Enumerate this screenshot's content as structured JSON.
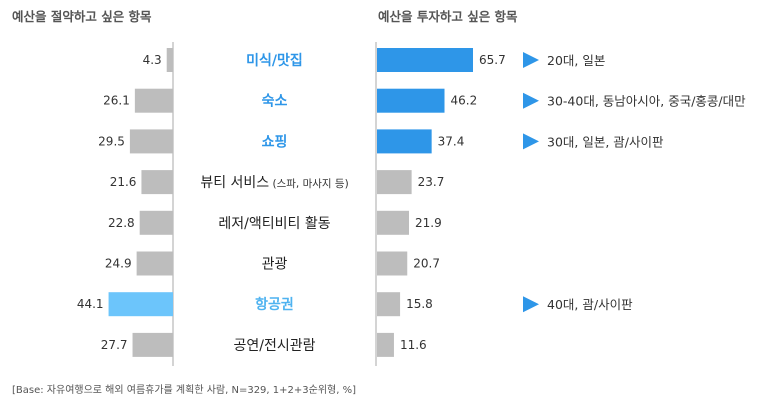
{
  "chart_data": {
    "type": "bar",
    "layout": "diverging-horizontal",
    "titles": {
      "left": "예산을 절약하고 싶은 항목",
      "right": "예산을 투자하고 싶은 항목"
    },
    "categories": [
      {
        "label": "미식/맛집",
        "note": "",
        "style": "highlight"
      },
      {
        "label": "숙소",
        "note": "",
        "style": "highlight"
      },
      {
        "label": "쇼핑",
        "note": "",
        "style": "highlight"
      },
      {
        "label": "뷰티 서비스",
        "note": "(스파, 마사지 등)",
        "style": "normal"
      },
      {
        "label": "레저/액티비티 활동",
        "note": "",
        "style": "normal"
      },
      {
        "label": "관광",
        "note": "",
        "style": "normal"
      },
      {
        "label": "항공권",
        "note": "",
        "style": "highlight-light"
      },
      {
        "label": "공연/전시관람",
        "note": "",
        "style": "normal"
      }
    ],
    "series": [
      {
        "name": "예산을 절약하고 싶은 항목",
        "values": [
          4.3,
          26.1,
          29.5,
          21.6,
          22.8,
          24.9,
          44.1,
          27.7
        ]
      },
      {
        "name": "예산을 투자하고 싶은 항목",
        "values": [
          65.7,
          46.2,
          37.4,
          23.7,
          21.9,
          20.7,
          15.8,
          11.6
        ]
      }
    ],
    "value_labels_left": [
      "4.3",
      "26.1",
      "29.5",
      "21.6",
      "22.8",
      "24.9",
      "44.1",
      "27.7"
    ],
    "value_labels_right": [
      "65.7",
      "46.2",
      "37.4",
      "23.7",
      "21.9",
      "20.7",
      "15.8",
      "11.6"
    ],
    "callouts": [
      {
        "row": 0,
        "text": "20대, 일본"
      },
      {
        "row": 1,
        "text": "30-40대, 동남아시아, 중국/홍콩/대만"
      },
      {
        "row": 2,
        "text": "30대, 일본, 괌/사이판"
      },
      {
        "row": 6,
        "text": "40대, 괌/사이판"
      }
    ],
    "xlim": [
      0,
      70
    ],
    "footnote": "[Base: 자유여행으로 해외 여름휴가를 계획한 사람, N=329, 1+2+3순위형, %]"
  },
  "colors": {
    "left_bar": "#BDBDBD",
    "left_bar_highlight": "#6CC5FB",
    "right_bar_highlight": "#2E96E8",
    "right_bar": "#BDBDBD",
    "axis": "#AAAAAA",
    "callout_arrow": "#2E96E8"
  }
}
